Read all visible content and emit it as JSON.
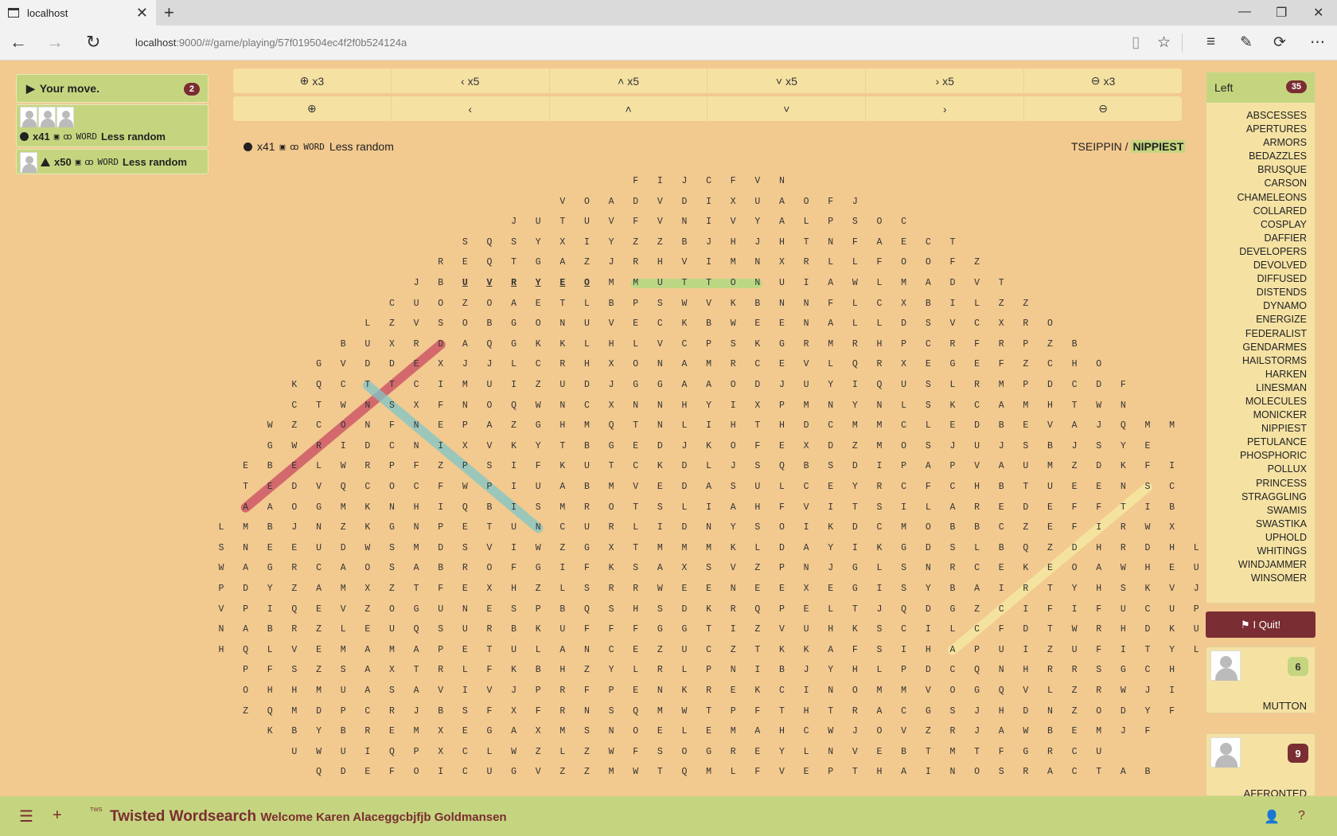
{
  "browser": {
    "tab_title": "localhost",
    "url_host": "localhost",
    "url_rest": ":9000/#/game/playing/57f019504ec4f2f0b524124a"
  },
  "left_panel": {
    "your_move": "Your move.",
    "move_count": "2",
    "player1": {
      "count": "x41",
      "mode": "WORD",
      "label": "Less random"
    },
    "player2": {
      "count": "x50",
      "mode": "WORD",
      "label": "Less random"
    }
  },
  "controls": {
    "row1": [
      "x3",
      "x5",
      "x5",
      "x5",
      "x5",
      "x3"
    ],
    "icons": [
      "zoom-in-icon",
      "arrow-left-icon",
      "arrow-up-icon",
      "arrow-down-icon",
      "arrow-right-icon",
      "zoom-out-icon"
    ]
  },
  "game_info": {
    "count": "x41",
    "mode": "WORD",
    "label": "Less random",
    "anagram": "TSEIPPIN / ",
    "answer": "NIPPIEST"
  },
  "grid": {
    "rows": [
      {
        "s": 17,
        "l": "FIJCFVN"
      },
      {
        "s": 14,
        "l": "VOADVDIXUAOFJ"
      },
      {
        "s": 12,
        "l": "JUTUVFVNIVYALPSOC"
      },
      {
        "s": 10,
        "l": "SQSYXIYZZBJHJHTNFAECT"
      },
      {
        "s": 9,
        "l": "REQTGAZJRHVIMNXRLLFOOFZ"
      },
      {
        "s": 8,
        "l": "JBUVRYEOMMUTTONUIAWLMADVT"
      },
      {
        "s": 7,
        "l": "CUOZOAETLBPSWVKBNNFLCXBILZZ"
      },
      {
        "s": 6,
        "l": "LZVSOBGONUVECKBWEENALLDSVCXRO"
      },
      {
        "s": 5,
        "l": "BUXRDAQGKKLHLVCPSKGRMRHPCRFRPZB"
      },
      {
        "s": 4,
        "l": "GVDDEXJJLCRHXONAMRCEVLQRXEGEFZCHO"
      },
      {
        "s": 3,
        "l": "KQCTTCIMUIZUDJGGAAODJUYIQUSLRMPDCDF"
      },
      {
        "s": 3,
        "l": "CTWNSXFNOQWNCXNNHYIXPMNYNLSKCAMHTWN"
      },
      {
        "s": 2,
        "l": "WZCONFNEPAZGHMQTNLIHTHDCMMCLEDBEVAJQMM"
      },
      {
        "s": 2,
        "l": "GWRIDCNIXVKYTBGEDJKOFEXDZMOSJUJSBJSYE"
      },
      {
        "s": 1,
        "l": "EBELWRPFZPSIFKUTCKDLJSQBSDIPAPVAUMZDKFI"
      },
      {
        "s": 1,
        "l": "TEDVQCOCFWPIUABMVEDASULCEYRCFCHBTUEENSC"
      },
      {
        "s": 1,
        "l": "AAOGMKNHIQBISMROTSLIAHFVITSILAREDEFFTIB"
      },
      {
        "s": 0,
        "l": "LMBJNZKGNPETUNCURLIDNYSOIKDCMOBBCZEFIRWX"
      },
      {
        "s": 0,
        "l": "SNEEUDWSMDSVIWZGXTMMMKLDAYIKGDSLBQZDHRDHL"
      },
      {
        "s": 0,
        "l": "WAGRCAOSABROFGIFKSAXSVZPNJGLSNRCEKEOAWHEU"
      },
      {
        "s": 0,
        "l": "PDYZAMXZTFEXHZLSRRWEENEEXEGISYBAIRTYHSKVJ"
      },
      {
        "s": 0,
        "l": "VPIQEVZOGUNESPBQSHSDKRQPELTJQDGZCIFIFUCUP"
      },
      {
        "s": 0,
        "l": "NABRZLEUQSURBKUFFFGGTIZVUHKSCILCFDTWRHDKU"
      },
      {
        "s": 0,
        "l": "HQLVEMAMAPETULANCEZUCZTKKAFSIHAPUIZUFITYL"
      },
      {
        "s": 1,
        "l": "PFSZSAXTRLFKBHZYLRLPNIBJYHLPDCQNHRRSGCH"
      },
      {
        "s": 1,
        "l": "OHHMUASAVIVJPRFPENKREKCINOMMVOGQVLZRWJI"
      },
      {
        "s": 1,
        "l": "ZQMDPCRJBSFXFRNSQMWTPFTHTRACGSJHDNZODYF"
      },
      {
        "s": 2,
        "l": "KBYBREMXEGAXMSNOELEMAHCWJOVZRJAWBEMJF"
      },
      {
        "s": 3,
        "l": "UWUIQPXCLWZLZWFSOGREYLNVEBTMTFGRCU"
      },
      {
        "s": 4,
        "l": "QDEFOICUGVZZMWTQMLFVEPTHAINOSRACTAB"
      }
    ]
  },
  "words_panel": {
    "header": "Left",
    "count": "35",
    "words": [
      "ABSCESSES",
      "APERTURES",
      "ARMORS",
      "BEDAZZLES",
      "BRUSQUE",
      "CARSON",
      "CHAMELEONS",
      "COLLARED",
      "COSPLAY",
      "DAFFIER",
      "DEVELOPERS",
      "DEVOLVED",
      "DIFFUSED",
      "DISTENDS",
      "DYNAMO",
      "ENERGIZE",
      "FEDERALIST",
      "GENDARMES",
      "HAILSTORMS",
      "HARKEN",
      "LINESMAN",
      "MOLECULES",
      "MONICKER",
      "NIPPIEST",
      "PETULANCE",
      "PHOSPHORIC",
      "POLLUX",
      "PRINCESS",
      "STRAGGLING",
      "SWAMIS",
      "SWASTIKA",
      "UPHOLD",
      "WHITINGS",
      "WINDJAMMER",
      "WINSOMER"
    ]
  },
  "quit_label": "I Quit!",
  "players": [
    {
      "score": "6",
      "word": "MUTTON",
      "badge_bg": "#c5d57f",
      "badge_fg": "#333"
    },
    {
      "score": "9",
      "word": "AFFRONTED",
      "badge_bg": "#7a2d32",
      "badge_fg": "#fff"
    }
  ],
  "footer": {
    "title": "Twisted Wordsearch",
    "welcome": "Welcome Karen Alaceggcbjfjb Goldmansen",
    "logo": "TWS"
  },
  "colors": {
    "bg": "#f2c98f",
    "green": "#c5d57f",
    "maroon": "#7a2d32",
    "cream": "#f5e2a3"
  }
}
